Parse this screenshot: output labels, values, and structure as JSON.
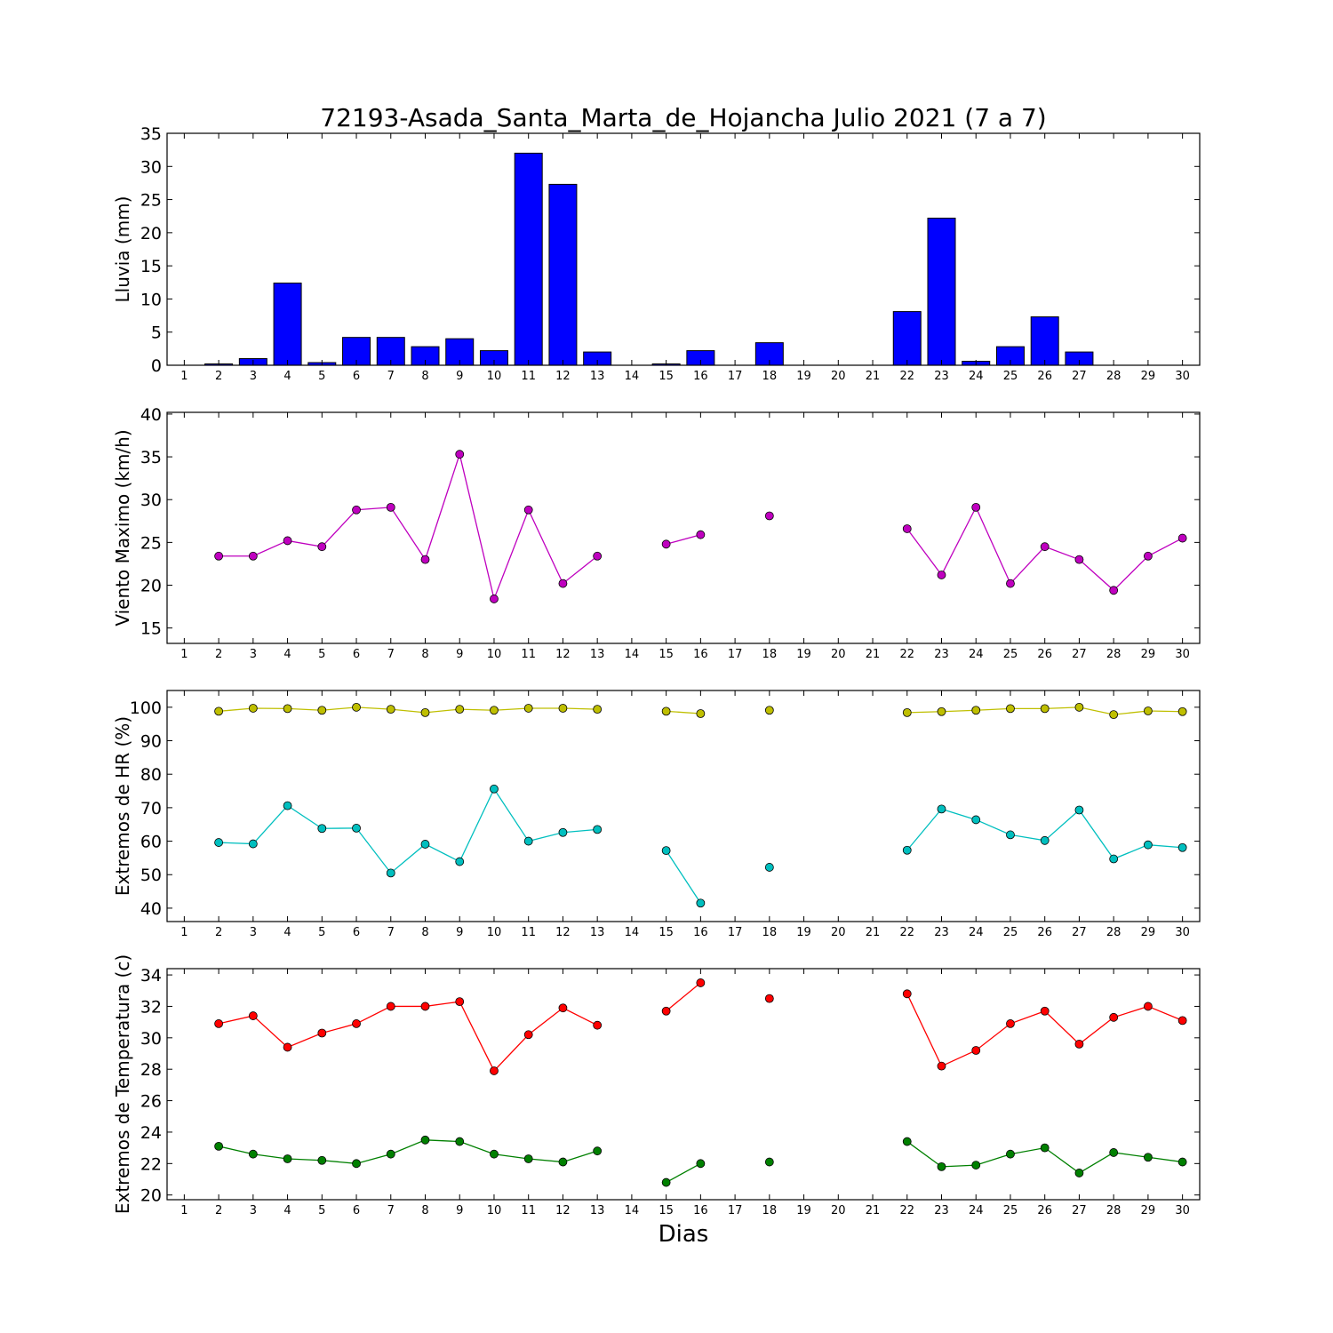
{
  "figure": {
    "title": "72193-Asada_Santa_Marta_de_Hojancha Julio 2021  (7 a 7)",
    "xlabel": "Dias"
  },
  "chart_data": [
    {
      "type": "bar",
      "ylabel": "Lluvia (mm)",
      "x": [
        1,
        2,
        3,
        4,
        5,
        6,
        7,
        8,
        9,
        10,
        11,
        12,
        13,
        14,
        15,
        16,
        17,
        18,
        19,
        20,
        21,
        22,
        23,
        24,
        25,
        26,
        27,
        28,
        29,
        30
      ],
      "xlim": [
        0.5,
        30.5
      ],
      "ylim": [
        0,
        35
      ],
      "yticks": [
        0,
        5,
        10,
        15,
        20,
        25,
        30,
        35
      ],
      "grid": false,
      "series": [
        {
          "color": "#0000ff",
          "values": [
            0,
            0.2,
            1.0,
            12.4,
            0.4,
            4.2,
            4.2,
            2.8,
            4.0,
            2.2,
            32.0,
            27.3,
            2.0,
            0,
            0.2,
            2.2,
            0,
            3.4,
            0,
            0,
            0,
            8.1,
            22.2,
            0.6,
            2.8,
            7.3,
            2.0,
            0,
            0,
            0
          ]
        }
      ]
    },
    {
      "type": "line",
      "ylabel": "Viento Maximo (km/h)",
      "x": [
        1,
        2,
        3,
        4,
        5,
        6,
        7,
        8,
        9,
        10,
        11,
        12,
        13,
        14,
        15,
        16,
        17,
        18,
        19,
        20,
        21,
        22,
        23,
        24,
        25,
        26,
        27,
        28,
        29,
        30
      ],
      "xlim": [
        0.5,
        30.5
      ],
      "ylim": [
        13.2,
        40.2
      ],
      "yticks": [
        15,
        20,
        25,
        30,
        35,
        40
      ],
      "grid": false,
      "series": [
        {
          "color": "#bf00bf",
          "values": [
            null,
            23.4,
            23.4,
            25.2,
            24.5,
            28.8,
            29.1,
            23.0,
            35.3,
            18.4,
            28.8,
            20.2,
            23.4,
            null,
            24.8,
            25.9,
            null,
            28.1,
            null,
            null,
            null,
            26.6,
            21.2,
            29.1,
            20.2,
            24.5,
            23.0,
            19.4,
            23.4,
            25.5
          ]
        }
      ]
    },
    {
      "type": "line",
      "ylabel": "Extremos de HR (%)",
      "x": [
        1,
        2,
        3,
        4,
        5,
        6,
        7,
        8,
        9,
        10,
        11,
        12,
        13,
        14,
        15,
        16,
        17,
        18,
        19,
        20,
        21,
        22,
        23,
        24,
        25,
        26,
        27,
        28,
        29,
        30
      ],
      "xlim": [
        0.5,
        30.5
      ],
      "ylim": [
        36,
        105
      ],
      "yticks": [
        40,
        50,
        60,
        70,
        80,
        90,
        100
      ],
      "grid": false,
      "series": [
        {
          "color": "#bfbf00",
          "values": [
            null,
            98.8,
            99.7,
            99.6,
            99.1,
            100.0,
            99.4,
            98.4,
            99.4,
            99.1,
            99.7,
            99.7,
            99.4,
            null,
            98.8,
            98.1,
            null,
            99.1,
            null,
            null,
            null,
            98.4,
            98.7,
            99.1,
            99.6,
            99.6,
            100.0,
            97.8,
            98.9,
            98.7
          ]
        },
        {
          "color": "#00bfbf",
          "values": [
            null,
            59.6,
            59.2,
            70.6,
            63.8,
            63.9,
            50.5,
            59.1,
            53.9,
            75.6,
            60.0,
            62.6,
            63.5,
            null,
            57.2,
            41.5,
            null,
            52.2,
            null,
            null,
            null,
            57.3,
            69.6,
            66.4,
            61.9,
            60.2,
            69.3,
            54.7,
            58.9,
            58.1
          ]
        }
      ]
    },
    {
      "type": "line",
      "ylabel": "Extremos de Temperatura (c)",
      "x": [
        1,
        2,
        3,
        4,
        5,
        6,
        7,
        8,
        9,
        10,
        11,
        12,
        13,
        14,
        15,
        16,
        17,
        18,
        19,
        20,
        21,
        22,
        23,
        24,
        25,
        26,
        27,
        28,
        29,
        30
      ],
      "xlim": [
        0.5,
        30.5
      ],
      "ylim": [
        19.7,
        34.4
      ],
      "yticks": [
        20,
        22,
        24,
        26,
        28,
        30,
        32,
        34
      ],
      "grid": false,
      "series": [
        {
          "color": "#ff0000",
          "values": [
            null,
            30.9,
            31.4,
            29.4,
            30.3,
            30.9,
            32.0,
            32.0,
            32.3,
            27.9,
            30.2,
            31.9,
            30.8,
            null,
            31.7,
            33.5,
            null,
            32.5,
            null,
            null,
            null,
            32.8,
            28.2,
            29.2,
            30.9,
            31.7,
            29.6,
            31.3,
            32.0,
            31.1
          ]
        },
        {
          "color": "#008000",
          "values": [
            null,
            23.1,
            22.6,
            22.3,
            22.2,
            22.0,
            22.6,
            23.5,
            23.4,
            22.6,
            22.3,
            22.1,
            22.8,
            null,
            20.8,
            22.0,
            null,
            22.1,
            null,
            null,
            null,
            23.4,
            21.8,
            21.9,
            22.6,
            23.0,
            21.4,
            22.7,
            22.4,
            22.1
          ]
        }
      ]
    }
  ]
}
